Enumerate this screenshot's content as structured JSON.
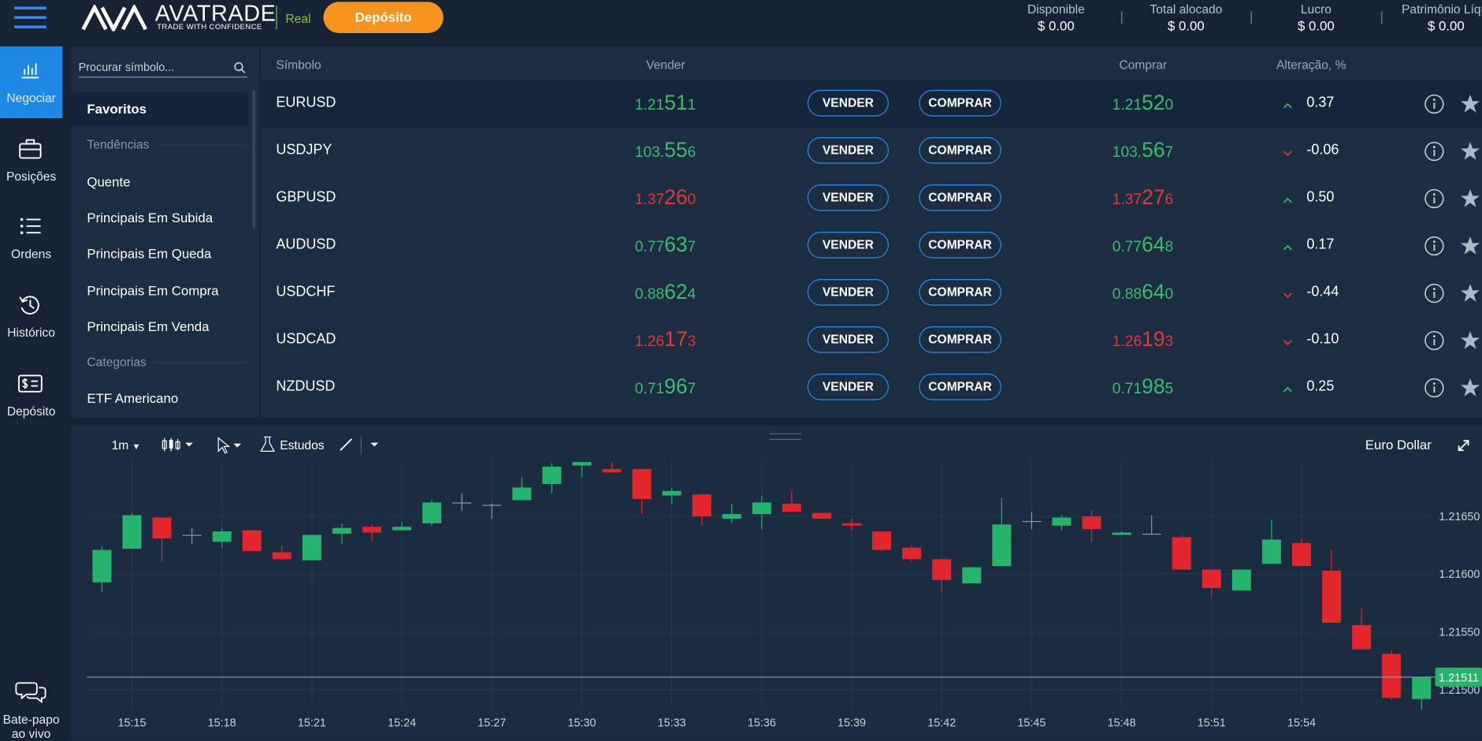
{
  "header": {
    "brand": "AVATRADE",
    "tagline": "TRADE WITH CONFIDENCE",
    "account_type": "Real",
    "deposit_button": "Depósito",
    "stats": [
      {
        "label": "Disponible",
        "value": "$ 0.00"
      },
      {
        "label": "Total alocado",
        "value": "$ 0.00"
      },
      {
        "label": "Lucro",
        "value": "$ 0.00"
      },
      {
        "label": "Patrimônio Líqui",
        "value": "$ 0.00"
      }
    ]
  },
  "sidebar": {
    "items": [
      "Negociar",
      "Posições",
      "Ordens",
      "Histórico",
      "Depósito"
    ],
    "active": 0,
    "chat": "Bate-papo ao vivo"
  },
  "menu": {
    "search_placeholder": "Procurar símbolo...",
    "items": [
      {
        "label": "Favoritos",
        "kind": "selected"
      },
      {
        "label": "Tendências",
        "kind": "heading"
      },
      {
        "label": "Quente",
        "kind": "item"
      },
      {
        "label": "Principais Em Subida",
        "kind": "item"
      },
      {
        "label": "Principais Em Queda",
        "kind": "item"
      },
      {
        "label": "Principais Em Compra",
        "kind": "item"
      },
      {
        "label": "Principais Em Venda",
        "kind": "item"
      },
      {
        "label": "Categorias",
        "kind": "heading"
      },
      {
        "label": "ETF Americano",
        "kind": "item"
      }
    ]
  },
  "table": {
    "columns": [
      "Símbolo",
      "Vender",
      "Comprar",
      "Alteração, %"
    ],
    "sell_button": "VENDER",
    "buy_button": "COMPRAR",
    "rows": [
      {
        "symbol": "EURUSD",
        "sell": [
          "1.21",
          "51",
          "1"
        ],
        "buy": [
          "1.21",
          "52",
          "0"
        ],
        "price_color": "#3dba6f",
        "change": "0.37"
      },
      {
        "symbol": "USDJPY",
        "sell": [
          "103.",
          "55",
          "6"
        ],
        "buy": [
          "103.",
          "56",
          "7"
        ],
        "price_color": "#3dba6f",
        "change": "-0.06"
      },
      {
        "symbol": "GBPUSD",
        "sell": [
          "1.37",
          "26",
          "0"
        ],
        "buy": [
          "1.37",
          "27",
          "6"
        ],
        "price_color": "#e0383e",
        "change": "0.50"
      },
      {
        "symbol": "AUDUSD",
        "sell": [
          "0.77",
          "63",
          "7"
        ],
        "buy": [
          "0.77",
          "64",
          "8"
        ],
        "price_color": "#3dba6f",
        "change": "0.17"
      },
      {
        "symbol": "USDCHF",
        "sell": [
          "0.88",
          "62",
          "4"
        ],
        "buy": [
          "0.88",
          "64",
          "0"
        ],
        "price_color": "#3dba6f",
        "change": "-0.44"
      },
      {
        "symbol": "USDCAD",
        "sell": [
          "1.26",
          "17",
          "3"
        ],
        "buy": [
          "1.26",
          "19",
          "3"
        ],
        "price_color": "#e0383e",
        "change": "-0.10"
      },
      {
        "symbol": "NZDUSD",
        "sell": [
          "0.71",
          "96",
          "7"
        ],
        "buy": [
          "0.71",
          "98",
          "5"
        ],
        "price_color": "#3dba6f",
        "change": "0.25"
      }
    ]
  },
  "chart_data": {
    "type": "candlestick",
    "title": "Euro Dollar",
    "interval": "1m",
    "studies": "Estudos",
    "categories": [
      null,
      "15:15",
      null,
      null,
      "15:18",
      null,
      null,
      "15:21",
      null,
      null,
      "15:24",
      null,
      null,
      "15:27",
      null,
      null,
      "15:30",
      null,
      null,
      "15:33",
      null,
      null,
      "15:36",
      null,
      null,
      "15:39",
      null,
      null,
      "15:42",
      null,
      null,
      "15:45",
      null,
      null,
      "15:48",
      null,
      null,
      "15:51",
      null,
      null,
      "15:54",
      null,
      null,
      null,
      null
    ],
    "open": [
      1.21593,
      1.21622,
      1.21649,
      1.21634,
      1.21628,
      1.21638,
      1.21619,
      1.21612,
      1.21635,
      1.21641,
      1.21638,
      1.21644,
      1.21662,
      1.2166,
      1.21664,
      1.21678,
      1.21694,
      1.21691,
      1.21691,
      1.21668,
      1.21669,
      1.21648,
      1.21652,
      1.21661,
      1.21653,
      1.21644,
      1.21637,
      1.21623,
      1.21613,
      1.21592,
      1.21607,
      1.21646,
      1.21642,
      1.2165,
      1.21634,
      1.21635,
      1.21632,
      1.21604,
      1.21586,
      1.21609,
      1.21627,
      1.21603,
      1.21556,
      1.21531,
      1.21492
    ],
    "high": [
      1.21624,
      1.21653,
      1.21649,
      1.2164,
      1.2164,
      1.21638,
      1.21625,
      1.21634,
      1.21644,
      1.21643,
      1.21645,
      1.21664,
      1.2167,
      1.21661,
      1.21684,
      1.21696,
      1.21697,
      1.21697,
      1.21691,
      1.21675,
      1.2167,
      1.21661,
      1.21668,
      1.21672,
      1.21653,
      1.21648,
      1.21637,
      1.21625,
      1.21613,
      1.21606,
      1.21666,
      1.21654,
      1.21651,
      1.21655,
      1.21637,
      1.21651,
      1.21634,
      1.21604,
      1.21604,
      1.21647,
      1.2163,
      1.21621,
      1.2157,
      1.21534,
      1.21511
    ],
    "low": [
      1.21585,
      1.21622,
      1.21611,
      1.21626,
      1.21623,
      1.2162,
      1.21612,
      1.21612,
      1.21626,
      1.21628,
      1.21638,
      1.21642,
      1.21655,
      1.21648,
      1.21664,
      1.2167,
      1.21684,
      1.21688,
      1.21652,
      1.21661,
      1.21642,
      1.21644,
      1.21639,
      1.21654,
      1.21648,
      1.21638,
      1.2162,
      1.21611,
      1.21584,
      1.21592,
      1.21607,
      1.21639,
      1.21638,
      1.21628,
      1.21634,
      1.21635,
      1.21604,
      1.2158,
      1.21586,
      1.21609,
      1.21607,
      1.21558,
      1.21535,
      1.21491,
      1.21483
    ],
    "close": [
      1.21621,
      1.21651,
      1.21631,
      1.21634,
      1.21637,
      1.2162,
      1.21613,
      1.21634,
      1.2164,
      1.21636,
      1.21641,
      1.21662,
      1.21662,
      1.2166,
      1.21675,
      1.21693,
      1.21697,
      1.21688,
      1.21665,
      1.21672,
      1.2165,
      1.21652,
      1.21662,
      1.21654,
      1.21648,
      1.21642,
      1.21621,
      1.21613,
      1.21595,
      1.21606,
      1.21643,
      1.21646,
      1.21649,
      1.21639,
      1.21636,
      1.21635,
      1.21604,
      1.21588,
      1.21604,
      1.2163,
      1.21607,
      1.21558,
      1.21535,
      1.21493,
      1.21511
    ],
    "up_color": "#26b36b",
    "down_color": "#e3262b",
    "flat_color": "#8d99a8",
    "ylim": [
      1.21483,
      1.21699
    ],
    "yticks": [
      {
        "value": 1.215,
        "label": "1.21500"
      },
      {
        "value": 1.2155,
        "label": "1.21550"
      },
      {
        "value": 1.216,
        "label": "1.21600"
      },
      {
        "value": 1.2165,
        "label": "1.21650"
      }
    ],
    "current": 1.21511,
    "current_color": "#26b36b",
    "grid": true
  }
}
